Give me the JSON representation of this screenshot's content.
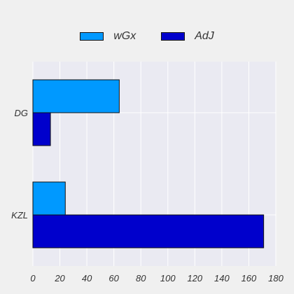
{
  "chart_data": {
    "type": "bar",
    "orientation": "horizontal",
    "categories": [
      "DG",
      "KZL"
    ],
    "series": [
      {
        "name": "wGx",
        "values": [
          64,
          24
        ],
        "color": "#0099ff"
      },
      {
        "name": "AdJ",
        "values": [
          13,
          171
        ],
        "color": "#0000cc"
      }
    ],
    "xlim": [
      0,
      180
    ],
    "xticks": [
      0,
      20,
      40,
      60,
      80,
      100,
      120,
      140,
      160,
      180
    ],
    "title": "",
    "xlabel": "",
    "ylabel": "",
    "grid": true,
    "legend_position": "top-center",
    "plot_background": "#eaeaf2"
  }
}
